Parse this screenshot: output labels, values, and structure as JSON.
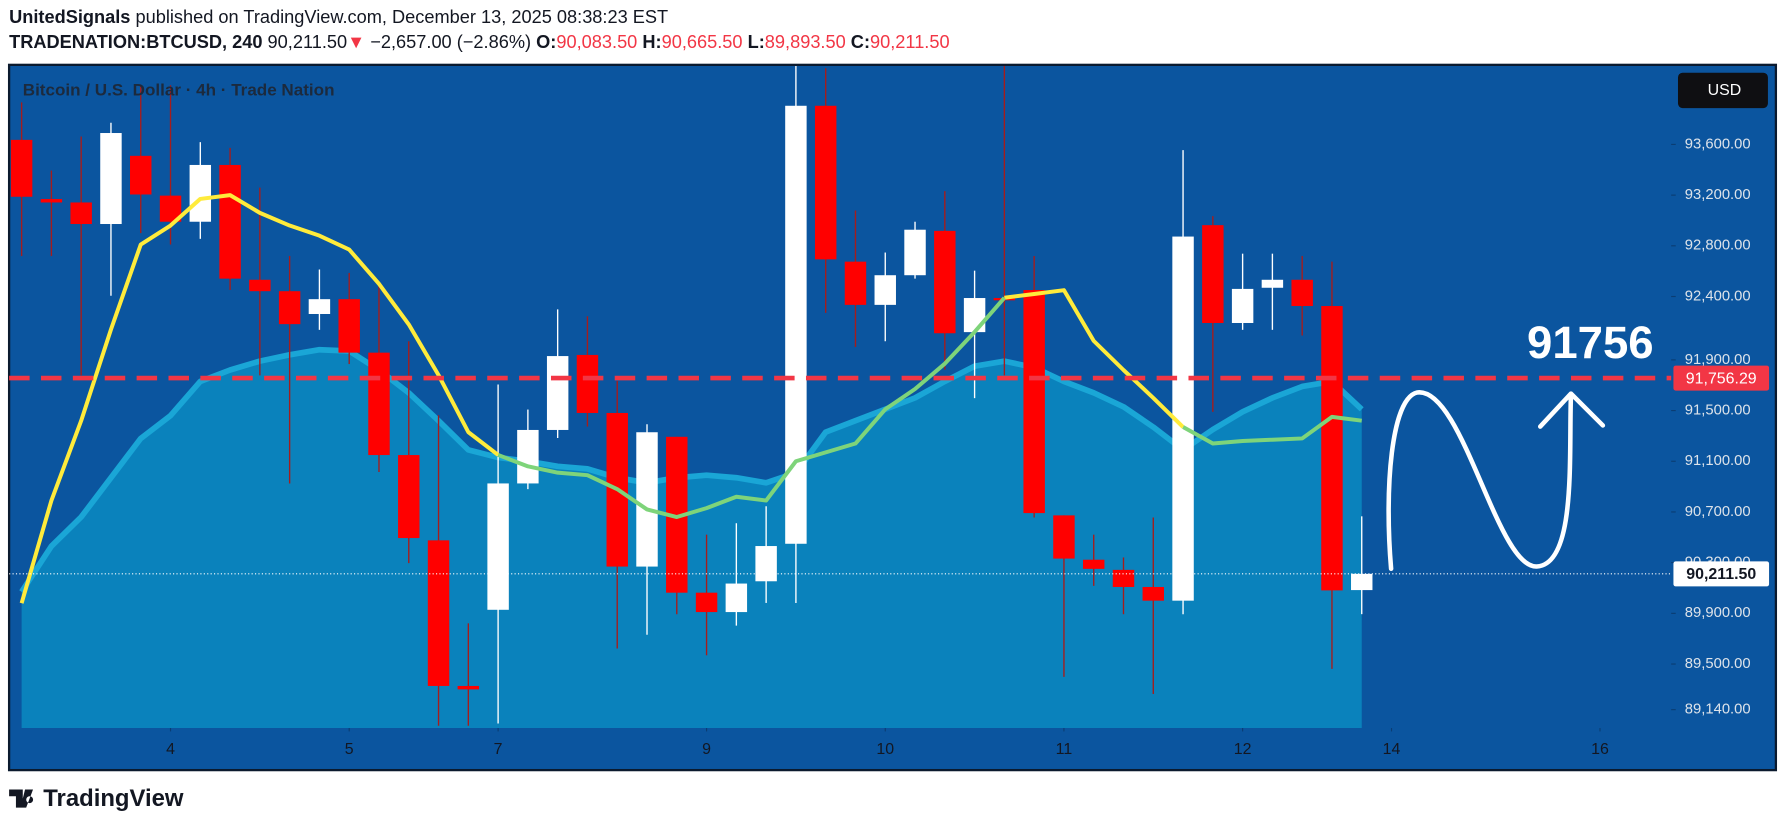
{
  "header": {
    "author": "UnitedSignals",
    "published": "published on TradingView.com, December 13, 2025 08:38:23 EST",
    "symbol": "TRADENATION:BTCUSD, 240",
    "last": "90,211.50",
    "arrow": "▼",
    "change": "−2,657.00 (−2.86%)",
    "o_label": "O:",
    "o": "90,083.50",
    "h_label": "H:",
    "h": "90,665.50",
    "l_label": "L:",
    "l": "89,893.50",
    "c_label": "C:",
    "c": "90,211.50"
  },
  "chart_data": {
    "type": "candlestick",
    "title": "Bitcoin / U.S. Dollar · 4h · Trade Nation",
    "currency": "USD",
    "up_color": "#ffffff",
    "down_color": "#ff0000",
    "open": [
      93636,
      93169,
      93142,
      92972,
      93510,
      93196,
      92990,
      93438,
      92532,
      92442,
      92262,
      92379,
      91957,
      91149,
      90476,
      89327,
      89928,
      90925,
      91347,
      91939,
      91481,
      90269,
      91293,
      90063,
      89910,
      90153,
      90449,
      93905,
      92675,
      92334,
      92568,
      92918,
      92119,
      92388,
      92451,
      90673,
      90323,
      90243,
      90108,
      90000,
      92963,
      92191,
      92469,
      92532,
      92325,
      90083.5
    ],
    "high": [
      93932,
      93394,
      93663,
      93771,
      94067,
      94067,
      93618,
      93573,
      93259,
      92720,
      92613,
      92586,
      92496,
      92047,
      91463,
      89821,
      91706,
      91508,
      92298,
      92244,
      91733,
      91392,
      91293,
      90521,
      90611,
      90745,
      94219,
      94201,
      93079,
      92747,
      92990,
      93232,
      92604,
      94219,
      92720,
      90673,
      90521,
      90341,
      90656,
      93555,
      93034,
      92738,
      92738,
      92720,
      92675,
      90665.5
    ],
    "low": [
      92720,
      92720,
      91778,
      92406,
      92900,
      92810,
      92855,
      92451,
      91778,
      90925,
      92137,
      91867,
      91015,
      90296,
      89013,
      89013,
      89031,
      90880,
      91284,
      91374,
      89623,
      89731,
      89893,
      89569,
      89803,
      89982,
      89982,
      92271,
      92002,
      92047,
      92541,
      91823,
      91598,
      91778,
      90656,
      89399,
      90117,
      89893,
      89264,
      89893,
      91490,
      92137,
      92137,
      92092,
      89462,
      89893.5
    ],
    "close": [
      93187,
      93142,
      92972,
      93690,
      93205,
      92990,
      93438,
      92541,
      92442,
      92182,
      92379,
      91957,
      91149,
      90494,
      89327,
      89300,
      90925,
      91347,
      91930,
      91481,
      90269,
      91329,
      90063,
      89910,
      90135,
      90431,
      93905,
      92693,
      92334,
      92568,
      92927,
      92110,
      92388,
      92370,
      90691,
      90332,
      90251,
      90108,
      90000,
      92873,
      92191,
      92460,
      92532,
      92325,
      90081,
      90211.5
    ],
    "lines": [
      {
        "color": "#ffeb3b",
        "values": [
          89980,
          90790,
          91420,
          92140,
          92810,
          92960,
          93170,
          93200,
          93060,
          92960,
          92880,
          92770,
          92500,
          92180,
          91780,
          91330,
          91150,
          null,
          null,
          null,
          null,
          null,
          null,
          null,
          null,
          null,
          null,
          null,
          null,
          null,
          null,
          null,
          null,
          92390,
          92420,
          92450,
          92050,
          91820,
          91600,
          91370,
          null,
          null,
          null,
          null,
          null,
          null
        ]
      },
      {
        "color": "#7ed47a",
        "values": [
          null,
          null,
          null,
          null,
          null,
          null,
          null,
          null,
          null,
          null,
          null,
          null,
          null,
          null,
          null,
          null,
          91150,
          91060,
          91010,
          90990,
          90880,
          90720,
          90660,
          90730,
          90820,
          90790,
          91100,
          91170,
          91240,
          91510,
          91670,
          91870,
          92120,
          92390,
          null,
          null,
          null,
          null,
          null,
          91370,
          91240,
          91260,
          91270,
          91280,
          91450,
          91420
        ]
      }
    ],
    "area": {
      "color": "#0a82bc",
      "edge_color": "#1aa6d6",
      "values": [
        90070,
        90430,
        90660,
        90970,
        91280,
        91460,
        91730,
        91820,
        91890,
        91940,
        91980,
        91970,
        91820,
        91640,
        91420,
        91190,
        91130,
        91100,
        91060,
        91040,
        90970,
        90930,
        90970,
        90990,
        90970,
        90930,
        91010,
        91330,
        91420,
        91510,
        91600,
        91730,
        91850,
        91890,
        91840,
        91730,
        91640,
        91530,
        91370,
        91190,
        91350,
        91490,
        91600,
        91690,
        91730,
        91510
      ]
    },
    "levels": [
      {
        "value": 91756.29,
        "label": "91,756.29",
        "color": "#f23645",
        "style": "dashed"
      },
      {
        "value": 90211.5,
        "label": "90,211.50",
        "color": "#ffffff",
        "style": "dotted"
      }
    ],
    "annotation": "91756",
    "xlim": [
      -0.42,
      55.39
    ],
    "xticks": [
      {
        "value": 5,
        "label": "4"
      },
      {
        "value": 11,
        "label": "5"
      },
      {
        "value": 16,
        "label": "7"
      },
      {
        "value": 23,
        "label": "9"
      },
      {
        "value": 29,
        "label": "10"
      },
      {
        "value": 35,
        "label": "11"
      },
      {
        "value": 41,
        "label": "12"
      },
      {
        "value": 46,
        "label": "14"
      },
      {
        "value": 53,
        "label": "16"
      }
    ],
    "ylim": [
      88995,
      94219
    ],
    "yticks": [
      {
        "value": 93600,
        "label": "93,600.00"
      },
      {
        "value": 93200,
        "label": "93,200.00"
      },
      {
        "value": 92800,
        "label": "92,800.00"
      },
      {
        "value": 92400,
        "label": "92,400.00"
      },
      {
        "value": 91900,
        "label": "91,900.00"
      },
      {
        "value": 91500,
        "label": "91,500.00"
      },
      {
        "value": 91100,
        "label": "91,100.00"
      },
      {
        "value": 90700,
        "label": "90,700.00"
      },
      {
        "value": 90300,
        "label": "90,300.00"
      },
      {
        "value": 89900,
        "label": "89,900.00"
      },
      {
        "value": 89500,
        "label": "89,500.00"
      },
      {
        "value": 89140,
        "label": "89,140.00"
      }
    ]
  },
  "footer": {
    "brand": "TradingView"
  }
}
